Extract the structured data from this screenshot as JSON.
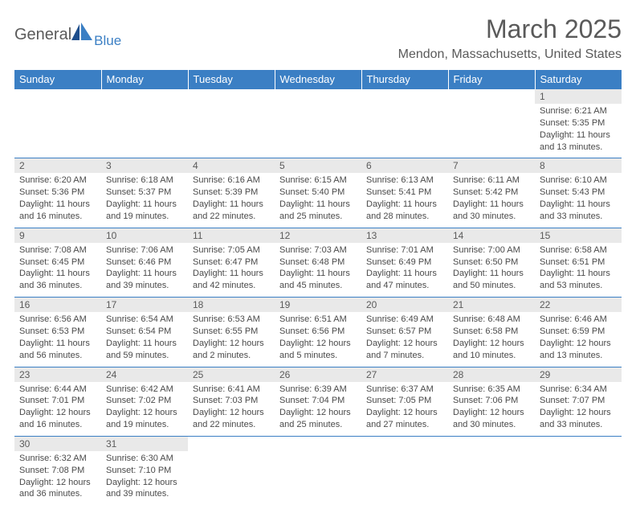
{
  "brand": {
    "name1": "General",
    "name2": "Blue"
  },
  "title": "March 2025",
  "location": "Mendon, Massachusetts, United States",
  "colors": {
    "header_bg": "#3b7fc4",
    "header_text": "#ffffff",
    "daynum_bg": "#e9e9e9",
    "border": "#3b7fc4",
    "text": "#4a4a4a",
    "page_bg": "#ffffff"
  },
  "layout": {
    "columns": 7,
    "rows": 6,
    "cell_font_size": 11,
    "header_font_size": 13,
    "title_font_size": 32
  },
  "columns": [
    "Sunday",
    "Monday",
    "Tuesday",
    "Wednesday",
    "Thursday",
    "Friday",
    "Saturday"
  ],
  "weeks": [
    [
      null,
      null,
      null,
      null,
      null,
      null,
      {
        "d": "1",
        "sr": "6:21 AM",
        "ss": "5:35 PM",
        "dl": "11 hours and 13 minutes."
      }
    ],
    [
      {
        "d": "2",
        "sr": "6:20 AM",
        "ss": "5:36 PM",
        "dl": "11 hours and 16 minutes."
      },
      {
        "d": "3",
        "sr": "6:18 AM",
        "ss": "5:37 PM",
        "dl": "11 hours and 19 minutes."
      },
      {
        "d": "4",
        "sr": "6:16 AM",
        "ss": "5:39 PM",
        "dl": "11 hours and 22 minutes."
      },
      {
        "d": "5",
        "sr": "6:15 AM",
        "ss": "5:40 PM",
        "dl": "11 hours and 25 minutes."
      },
      {
        "d": "6",
        "sr": "6:13 AM",
        "ss": "5:41 PM",
        "dl": "11 hours and 28 minutes."
      },
      {
        "d": "7",
        "sr": "6:11 AM",
        "ss": "5:42 PM",
        "dl": "11 hours and 30 minutes."
      },
      {
        "d": "8",
        "sr": "6:10 AM",
        "ss": "5:43 PM",
        "dl": "11 hours and 33 minutes."
      }
    ],
    [
      {
        "d": "9",
        "sr": "7:08 AM",
        "ss": "6:45 PM",
        "dl": "11 hours and 36 minutes."
      },
      {
        "d": "10",
        "sr": "7:06 AM",
        "ss": "6:46 PM",
        "dl": "11 hours and 39 minutes."
      },
      {
        "d": "11",
        "sr": "7:05 AM",
        "ss": "6:47 PM",
        "dl": "11 hours and 42 minutes."
      },
      {
        "d": "12",
        "sr": "7:03 AM",
        "ss": "6:48 PM",
        "dl": "11 hours and 45 minutes."
      },
      {
        "d": "13",
        "sr": "7:01 AM",
        "ss": "6:49 PM",
        "dl": "11 hours and 47 minutes."
      },
      {
        "d": "14",
        "sr": "7:00 AM",
        "ss": "6:50 PM",
        "dl": "11 hours and 50 minutes."
      },
      {
        "d": "15",
        "sr": "6:58 AM",
        "ss": "6:51 PM",
        "dl": "11 hours and 53 minutes."
      }
    ],
    [
      {
        "d": "16",
        "sr": "6:56 AM",
        "ss": "6:53 PM",
        "dl": "11 hours and 56 minutes."
      },
      {
        "d": "17",
        "sr": "6:54 AM",
        "ss": "6:54 PM",
        "dl": "11 hours and 59 minutes."
      },
      {
        "d": "18",
        "sr": "6:53 AM",
        "ss": "6:55 PM",
        "dl": "12 hours and 2 minutes."
      },
      {
        "d": "19",
        "sr": "6:51 AM",
        "ss": "6:56 PM",
        "dl": "12 hours and 5 minutes."
      },
      {
        "d": "20",
        "sr": "6:49 AM",
        "ss": "6:57 PM",
        "dl": "12 hours and 7 minutes."
      },
      {
        "d": "21",
        "sr": "6:48 AM",
        "ss": "6:58 PM",
        "dl": "12 hours and 10 minutes."
      },
      {
        "d": "22",
        "sr": "6:46 AM",
        "ss": "6:59 PM",
        "dl": "12 hours and 13 minutes."
      }
    ],
    [
      {
        "d": "23",
        "sr": "6:44 AM",
        "ss": "7:01 PM",
        "dl": "12 hours and 16 minutes."
      },
      {
        "d": "24",
        "sr": "6:42 AM",
        "ss": "7:02 PM",
        "dl": "12 hours and 19 minutes."
      },
      {
        "d": "25",
        "sr": "6:41 AM",
        "ss": "7:03 PM",
        "dl": "12 hours and 22 minutes."
      },
      {
        "d": "26",
        "sr": "6:39 AM",
        "ss": "7:04 PM",
        "dl": "12 hours and 25 minutes."
      },
      {
        "d": "27",
        "sr": "6:37 AM",
        "ss": "7:05 PM",
        "dl": "12 hours and 27 minutes."
      },
      {
        "d": "28",
        "sr": "6:35 AM",
        "ss": "7:06 PM",
        "dl": "12 hours and 30 minutes."
      },
      {
        "d": "29",
        "sr": "6:34 AM",
        "ss": "7:07 PM",
        "dl": "12 hours and 33 minutes."
      }
    ],
    [
      {
        "d": "30",
        "sr": "6:32 AM",
        "ss": "7:08 PM",
        "dl": "12 hours and 36 minutes."
      },
      {
        "d": "31",
        "sr": "6:30 AM",
        "ss": "7:10 PM",
        "dl": "12 hours and 39 minutes."
      },
      null,
      null,
      null,
      null,
      null
    ]
  ],
  "labels": {
    "sunrise": "Sunrise:",
    "sunset": "Sunset:",
    "daylight": "Daylight:"
  }
}
